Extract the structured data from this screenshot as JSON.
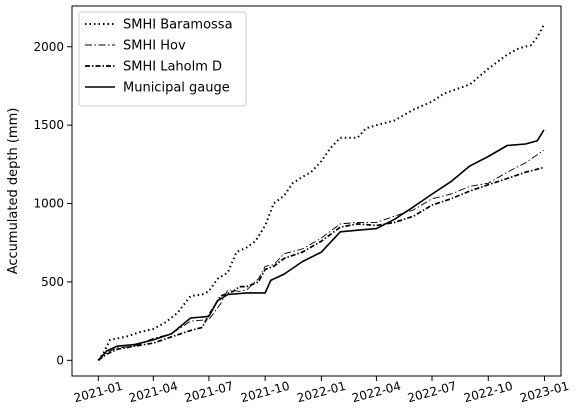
{
  "chart_data": {
    "type": "line",
    "title": "",
    "xlabel": "",
    "ylabel": "Accumulated depth (mm)",
    "xlim": [
      "2020-11-19",
      "2023-01-28"
    ],
    "ylim": [
      -100,
      2260
    ],
    "x_ticks": [
      "2021-01-01",
      "2021-04-01",
      "2021-07-01",
      "2021-10-01",
      "2022-01-01",
      "2022-04-01",
      "2022-07-01",
      "2022-10-01",
      "2023-01-01"
    ],
    "x_tick_labels": [
      "2021-01",
      "2021-04",
      "2021-07",
      "2021-10",
      "2022-01",
      "2022-04",
      "2022-07",
      "2022-10",
      "2023-01"
    ],
    "y_ticks": [
      0,
      500,
      1000,
      1500,
      2000
    ],
    "y_tick_labels": [
      "0",
      "500",
      "1000",
      "1500",
      "2000"
    ],
    "legend_position": "top-left",
    "grid": false,
    "series": [
      {
        "name": "SMHI Baramossa",
        "style": "dotted",
        "color": "#000000",
        "points": [
          [
            "2021-01-01",
            0
          ],
          [
            "2021-01-10",
            50
          ],
          [
            "2021-01-20",
            130
          ],
          [
            "2021-02-15",
            150
          ],
          [
            "2021-03-10",
            180
          ],
          [
            "2021-04-01",
            200
          ],
          [
            "2021-04-20",
            240
          ],
          [
            "2021-05-10",
            300
          ],
          [
            "2021-06-01",
            410
          ],
          [
            "2021-06-20",
            420
          ],
          [
            "2021-07-01",
            440
          ],
          [
            "2021-07-15",
            520
          ],
          [
            "2021-08-01",
            560
          ],
          [
            "2021-08-15",
            690
          ],
          [
            "2021-09-01",
            720
          ],
          [
            "2021-09-15",
            760
          ],
          [
            "2021-10-01",
            860
          ],
          [
            "2021-10-15",
            1000
          ],
          [
            "2021-11-01",
            1050
          ],
          [
            "2021-11-15",
            1130
          ],
          [
            "2021-12-01",
            1170
          ],
          [
            "2021-12-15",
            1200
          ],
          [
            "2022-01-01",
            1270
          ],
          [
            "2022-01-15",
            1350
          ],
          [
            "2022-02-01",
            1420
          ],
          [
            "2022-03-01",
            1420
          ],
          [
            "2022-03-15",
            1480
          ],
          [
            "2022-04-01",
            1500
          ],
          [
            "2022-05-01",
            1530
          ],
          [
            "2022-06-01",
            1600
          ],
          [
            "2022-07-01",
            1650
          ],
          [
            "2022-07-20",
            1700
          ],
          [
            "2022-08-10",
            1730
          ],
          [
            "2022-09-01",
            1760
          ],
          [
            "2022-10-01",
            1860
          ],
          [
            "2022-11-01",
            1950
          ],
          [
            "2022-11-20",
            1990
          ],
          [
            "2022-12-10",
            2010
          ],
          [
            "2022-12-20",
            2060
          ],
          [
            "2022-12-31",
            2140
          ]
        ]
      },
      {
        "name": "SMHI Hov",
        "style": "dashed",
        "color": "#000000",
        "points": [
          [
            "2021-01-01",
            0
          ],
          [
            "2021-01-15",
            50
          ],
          [
            "2021-02-01",
            80
          ],
          [
            "2021-03-01",
            90
          ],
          [
            "2021-04-01",
            140
          ],
          [
            "2021-05-01",
            170
          ],
          [
            "2021-06-01",
            250
          ],
          [
            "2021-07-01",
            260
          ],
          [
            "2021-07-20",
            360
          ],
          [
            "2021-08-01",
            450
          ],
          [
            "2021-08-20",
            440
          ],
          [
            "2021-09-01",
            450
          ],
          [
            "2021-09-20",
            520
          ],
          [
            "2021-10-01",
            600
          ],
          [
            "2021-10-15",
            610
          ],
          [
            "2021-11-01",
            680
          ],
          [
            "2021-12-01",
            710
          ],
          [
            "2022-01-01",
            780
          ],
          [
            "2022-02-01",
            870
          ],
          [
            "2022-03-01",
            880
          ],
          [
            "2022-04-01",
            880
          ],
          [
            "2022-05-01",
            920
          ],
          [
            "2022-06-01",
            960
          ],
          [
            "2022-07-01",
            1030
          ],
          [
            "2022-08-01",
            1060
          ],
          [
            "2022-09-01",
            1110
          ],
          [
            "2022-10-01",
            1130
          ],
          [
            "2022-11-01",
            1200
          ],
          [
            "2022-12-01",
            1260
          ],
          [
            "2022-12-31",
            1340
          ]
        ]
      },
      {
        "name": "SMHI Laholm D",
        "style": "dashdot",
        "color": "#000000",
        "points": [
          [
            "2021-01-01",
            0
          ],
          [
            "2021-01-15",
            40
          ],
          [
            "2021-02-01",
            70
          ],
          [
            "2021-03-01",
            90
          ],
          [
            "2021-04-01",
            110
          ],
          [
            "2021-05-01",
            150
          ],
          [
            "2021-06-01",
            190
          ],
          [
            "2021-06-20",
            210
          ],
          [
            "2021-07-01",
            290
          ],
          [
            "2021-07-20",
            410
          ],
          [
            "2021-08-10",
            440
          ],
          [
            "2021-08-20",
            470
          ],
          [
            "2021-09-01",
            470
          ],
          [
            "2021-09-20",
            500
          ],
          [
            "2021-10-01",
            580
          ],
          [
            "2021-10-15",
            600
          ],
          [
            "2021-11-01",
            650
          ],
          [
            "2021-12-01",
            690
          ],
          [
            "2022-01-01",
            760
          ],
          [
            "2022-02-01",
            850
          ],
          [
            "2022-03-01",
            870
          ],
          [
            "2022-04-01",
            860
          ],
          [
            "2022-05-01",
            880
          ],
          [
            "2022-06-01",
            920
          ],
          [
            "2022-07-01",
            990
          ],
          [
            "2022-08-01",
            1030
          ],
          [
            "2022-09-01",
            1080
          ],
          [
            "2022-10-01",
            1120
          ],
          [
            "2022-11-01",
            1160
          ],
          [
            "2022-12-01",
            1200
          ],
          [
            "2022-12-31",
            1230
          ]
        ]
      },
      {
        "name": "Municipal gauge",
        "style": "solid",
        "color": "#000000",
        "points": [
          [
            "2021-01-01",
            0
          ],
          [
            "2021-01-15",
            60
          ],
          [
            "2021-02-01",
            90
          ],
          [
            "2021-03-01",
            100
          ],
          [
            "2021-04-01",
            130
          ],
          [
            "2021-05-01",
            170
          ],
          [
            "2021-06-01",
            270
          ],
          [
            "2021-07-01",
            280
          ],
          [
            "2021-07-15",
            380
          ],
          [
            "2021-08-01",
            420
          ],
          [
            "2021-09-01",
            430
          ],
          [
            "2021-10-01",
            430
          ],
          [
            "2021-10-10",
            510
          ],
          [
            "2021-11-01",
            550
          ],
          [
            "2021-12-01",
            630
          ],
          [
            "2022-01-01",
            690
          ],
          [
            "2022-02-01",
            820
          ],
          [
            "2022-03-01",
            830
          ],
          [
            "2022-04-01",
            840
          ],
          [
            "2022-05-01",
            900
          ],
          [
            "2022-06-01",
            980
          ],
          [
            "2022-07-01",
            1060
          ],
          [
            "2022-08-01",
            1140
          ],
          [
            "2022-09-01",
            1240
          ],
          [
            "2022-10-01",
            1300
          ],
          [
            "2022-11-01",
            1370
          ],
          [
            "2022-12-01",
            1380
          ],
          [
            "2022-12-20",
            1400
          ],
          [
            "2022-12-31",
            1470
          ]
        ]
      }
    ]
  }
}
